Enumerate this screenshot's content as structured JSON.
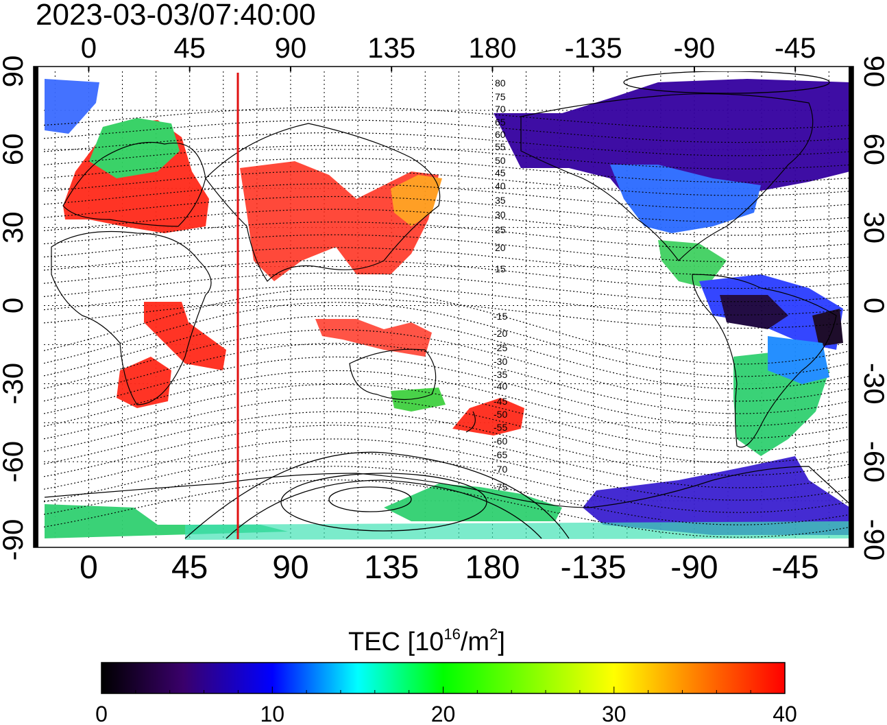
{
  "timestamp": "2023-03-03/07:40:00",
  "top_axis_labels": [
    "0",
    "45",
    "90",
    "135",
    "180",
    "-135",
    "-90",
    "-45"
  ],
  "bottom_axis_labels": [
    "0",
    "45",
    "90",
    "135",
    "180",
    "-135",
    "-90",
    "-45"
  ],
  "left_axis_labels": [
    "90",
    "60",
    "30",
    "0",
    "-30",
    "-60",
    "-90"
  ],
  "right_axis_labels": [
    "90",
    "60",
    "30",
    "0",
    "-30",
    "-60",
    "-90"
  ],
  "contour_labels_north": [
    "80",
    "75",
    "70",
    "65",
    "60",
    "55",
    "50",
    "45",
    "40",
    "35",
    "30",
    "25",
    "20",
    "15"
  ],
  "contour_labels_south": [
    "-15",
    "-20",
    "-25",
    "-30",
    "-35",
    "-40",
    "-45",
    "-50",
    "-55",
    "-60",
    "-65",
    "-70",
    "-75"
  ],
  "colorbar": {
    "title_prefix": "TEC  [10",
    "title_sup1": "16",
    "title_mid": "/m",
    "title_sup2": "2",
    "title_suffix": "]",
    "tick_labels": [
      "0",
      "10",
      "20",
      "30",
      "40"
    ],
    "min": 0,
    "max": 40,
    "colors": [
      "#000000",
      "#3a006b",
      "#0000ff",
      "#00ffff",
      "#00ff00",
      "#ffff00",
      "#ff8000",
      "#ff0000"
    ]
  },
  "map": {
    "lon_range": [
      -20,
      340
    ],
    "lat_range": [
      -90,
      90
    ],
    "grid": "dotted",
    "terminator_lon": 65
  }
}
